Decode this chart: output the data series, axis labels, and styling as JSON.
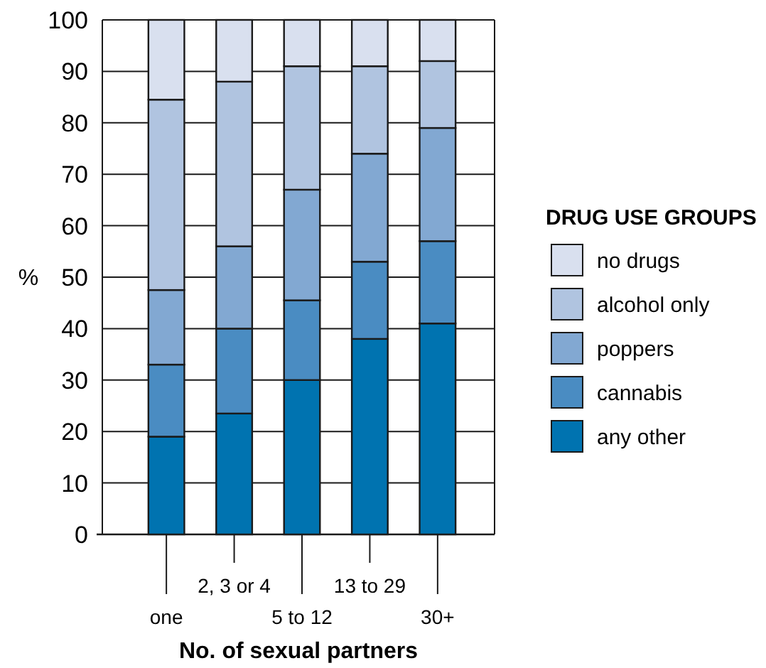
{
  "chart_data": {
    "type": "bar",
    "stacked": true,
    "xlabel": "No. of sexual partners",
    "ylabel": "%",
    "legend_title": "DRUG USE GROUPS",
    "categories": [
      "one",
      "2, 3 or 4",
      "5 to 12",
      "13 to 29",
      "30+"
    ],
    "ylim": [
      0,
      100
    ],
    "yticks": [
      0,
      10,
      20,
      30,
      40,
      50,
      60,
      70,
      80,
      90,
      100
    ],
    "grid": "y",
    "legend": "right",
    "series": [
      {
        "name": "any other",
        "color": "#0073b0",
        "values": [
          19,
          23.5,
          30,
          38,
          41
        ]
      },
      {
        "name": "cannabis",
        "color": "#4a8cc2",
        "values": [
          14,
          16.5,
          15.5,
          15,
          16
        ]
      },
      {
        "name": "poppers",
        "color": "#82a8d2",
        "values": [
          14.5,
          16,
          21.5,
          21,
          22
        ]
      },
      {
        "name": "alcohol only",
        "color": "#b0c4e0",
        "values": [
          37,
          32,
          24,
          17,
          13
        ]
      },
      {
        "name": "no drugs",
        "color": "#d9e0ef",
        "values": [
          15.5,
          12,
          9,
          9,
          8
        ]
      }
    ]
  }
}
